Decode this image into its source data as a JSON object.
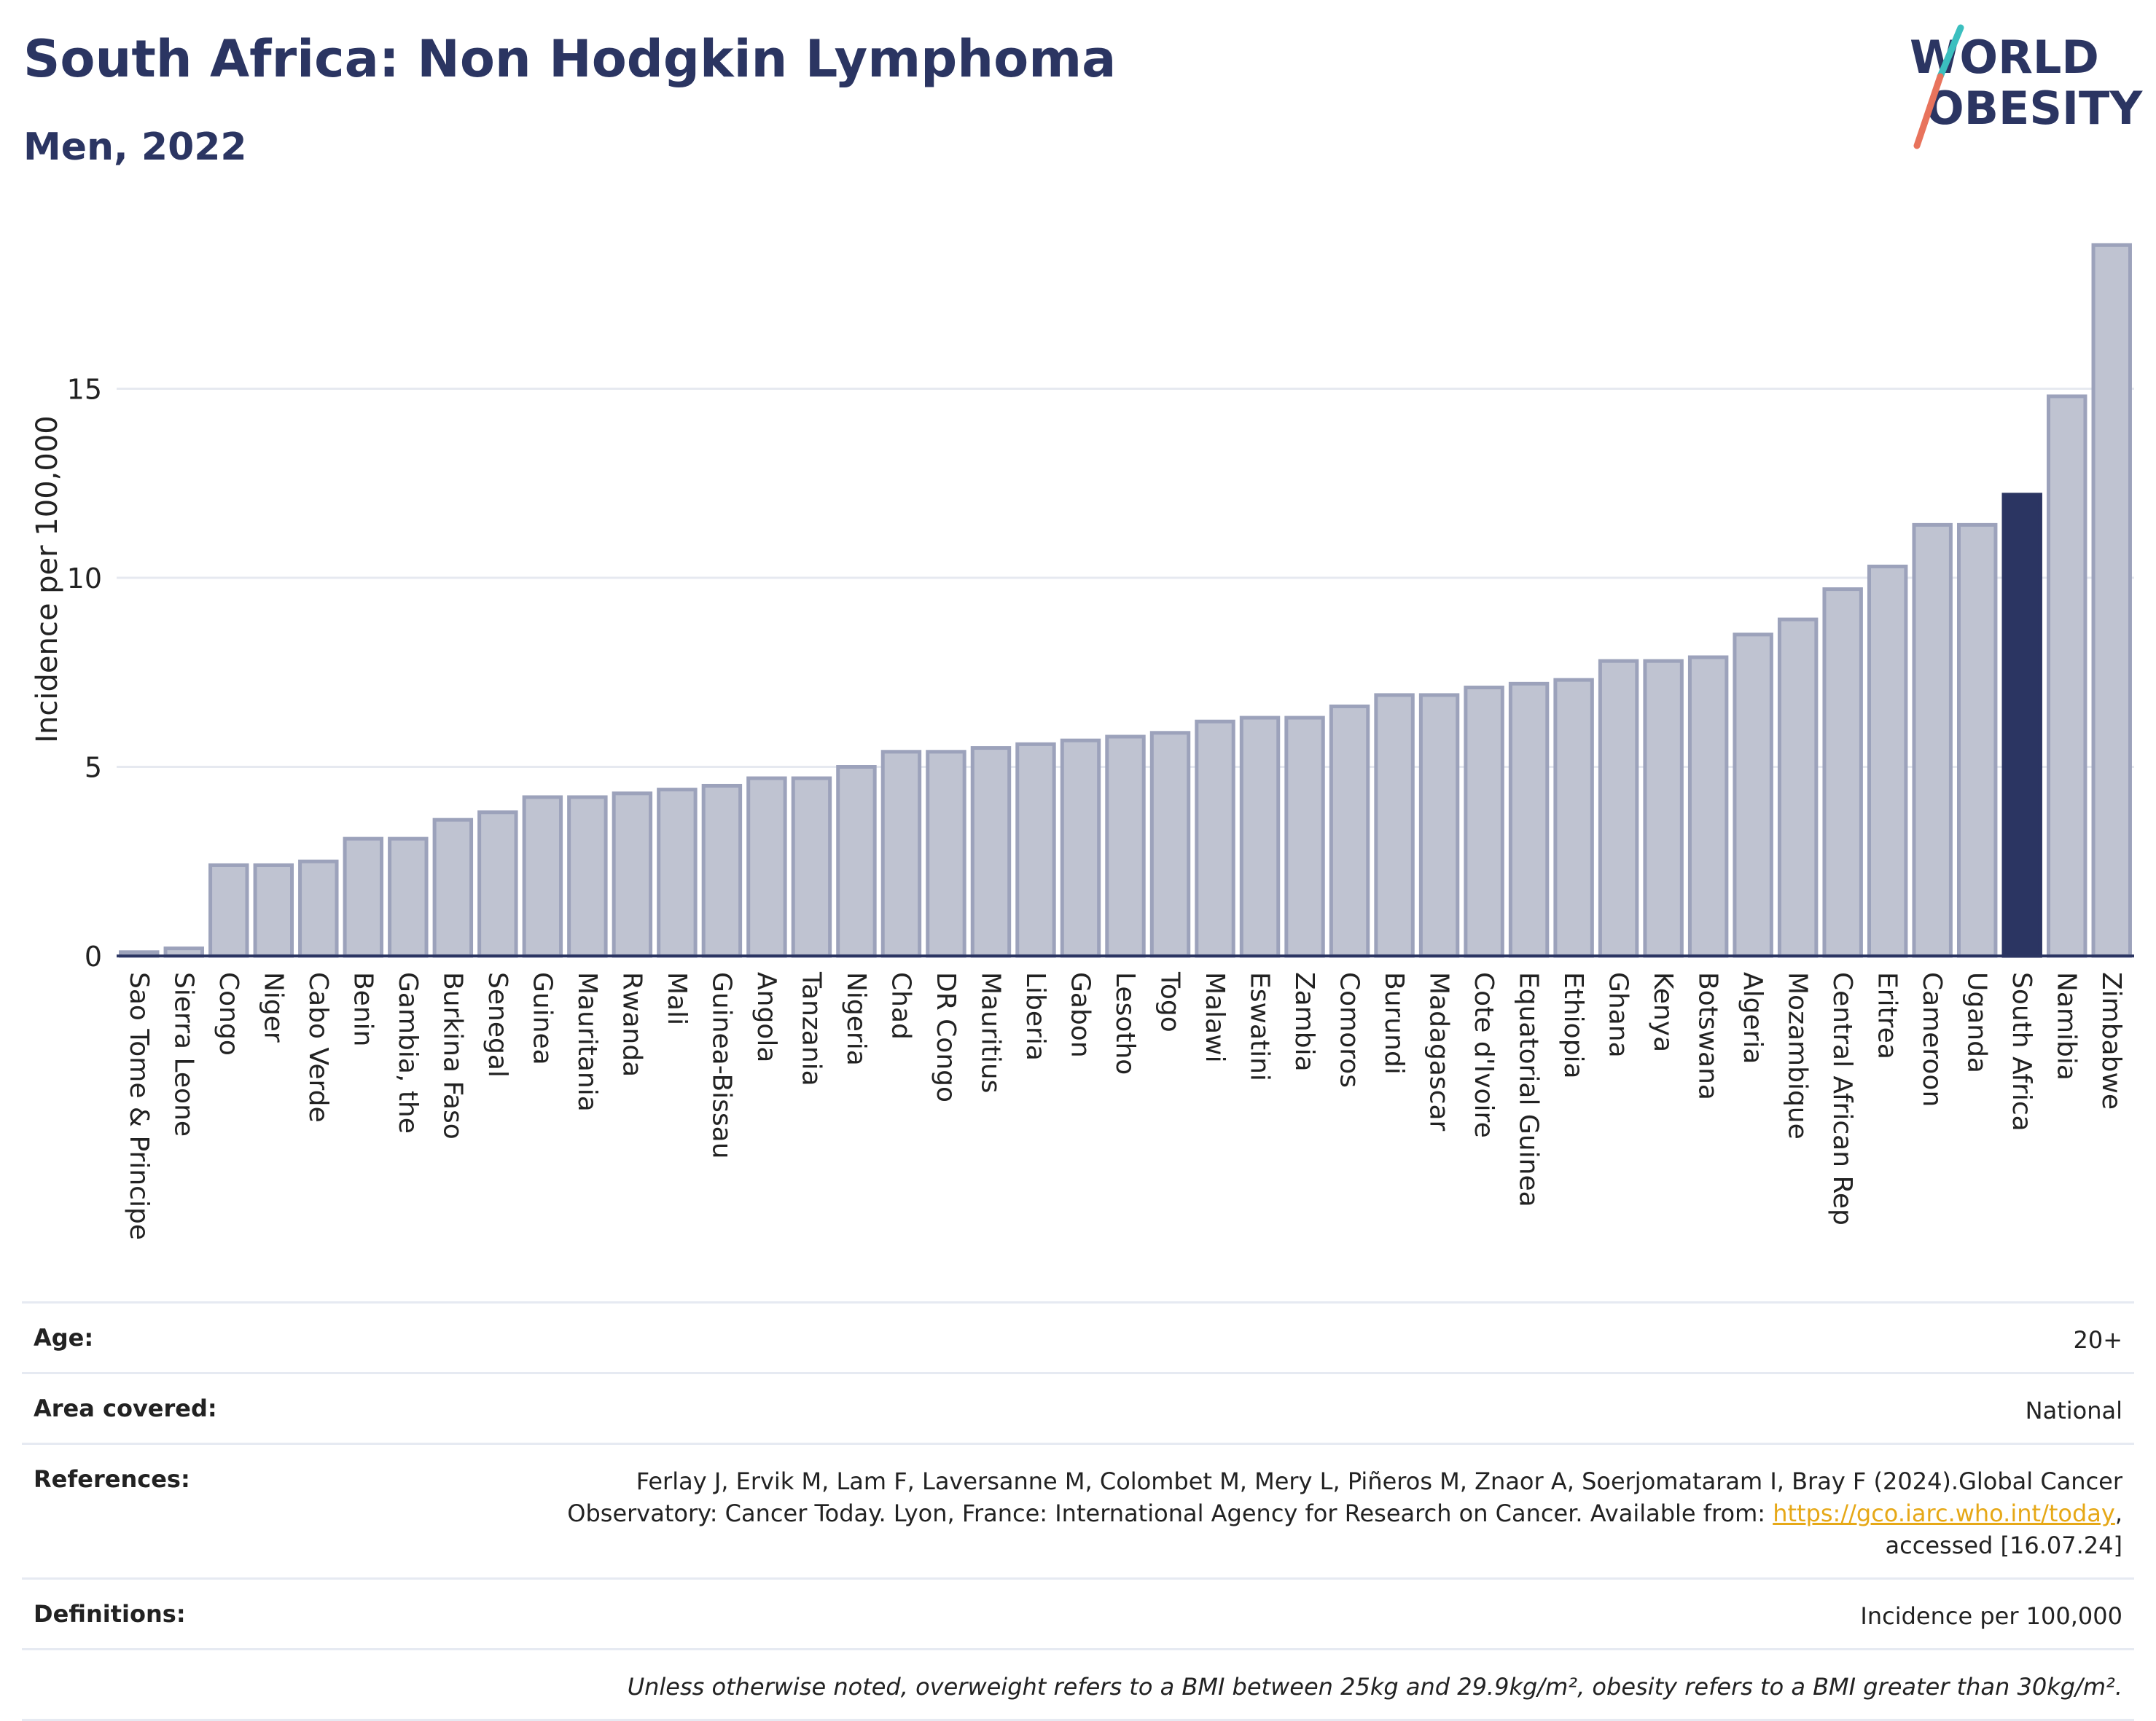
{
  "header": {
    "title": "South Africa: Non Hodgkin Lymphoma",
    "subtitle": "Men, 2022"
  },
  "logo": {
    "line1": "WORLD",
    "line2": "OBESITY",
    "colors": {
      "text": "#2b3562",
      "slash_top": "#3bbfbf",
      "slash_bottom": "#e8735c"
    }
  },
  "chart_data": {
    "type": "bar",
    "title": "South Africa: Non Hodgkin Lymphoma",
    "subtitle": "Men, 2022",
    "ylabel": "Incidence per 100,000",
    "xlabel": "",
    "ylim": [
      0,
      19.5
    ],
    "yticks": [
      0,
      5,
      10,
      15
    ],
    "grid": true,
    "highlight": "South Africa",
    "colors": {
      "bar": "#bfc3d1",
      "bar_border": "#9ca2bb",
      "highlight": "#2b3562",
      "grid": "#e6e9f0",
      "axis": "#2b3562"
    },
    "categories": [
      "Sao Tome & Principe",
      "Sierra Leone",
      "Congo",
      "Niger",
      "Cabo Verde",
      "Benin",
      "Gambia, the",
      "Burkina Faso",
      "Senegal",
      "Guinea",
      "Mauritania",
      "Rwanda",
      "Mali",
      "Guinea-Bissau",
      "Angola",
      "Tanzania",
      "Nigeria",
      "Chad",
      "DR Congo",
      "Mauritius",
      "Liberia",
      "Gabon",
      "Lesotho",
      "Togo",
      "Malawi",
      "Eswatini",
      "Zambia",
      "Comoros",
      "Burundi",
      "Madagascar",
      "Cote d'Ivoire",
      "Equatorial Guinea",
      "Ethiopia",
      "Ghana",
      "Kenya",
      "Botswana",
      "Algeria",
      "Mozambique",
      "Central African Rep",
      "Eritrea",
      "Cameroon",
      "Uganda",
      "South Africa",
      "Namibia",
      "Zimbabwe"
    ],
    "values": [
      0.1,
      0.2,
      2.4,
      2.4,
      2.5,
      3.1,
      3.1,
      3.6,
      3.8,
      4.2,
      4.2,
      4.3,
      4.4,
      4.5,
      4.7,
      4.7,
      5.0,
      5.4,
      5.4,
      5.5,
      5.6,
      5.7,
      5.8,
      5.9,
      6.2,
      6.3,
      6.3,
      6.6,
      6.9,
      6.9,
      7.1,
      7.2,
      7.3,
      7.8,
      7.8,
      7.9,
      8.5,
      8.9,
      9.7,
      10.3,
      11.4,
      11.4,
      12.2,
      14.8,
      18.8
    ]
  },
  "info": {
    "age_label": "Age:",
    "age_value": "20+",
    "area_label": "Area covered:",
    "area_value": "National",
    "references_label": "References:",
    "references_line1": "Ferlay J, Ervik M, Lam F, Laversanne M, Colombet M, Mery L, Piñeros M, Znaor A, Soerjomataram I, Bray F (2024).Global Cancer",
    "references_line2_pre": "Observatory: Cancer Today. Lyon, France: International Agency for Research on Cancer. Available from:",
    "references_link": "https://gco.iarc.who.int/today",
    "references_line2_post": ",",
    "references_line3": "accessed [16.07.24]",
    "definitions_label": "Definitions:",
    "definitions_value": "Incidence per 100,000",
    "note": "Unless otherwise noted, overweight refers to a BMI between 25kg and 29.9kg/m², obesity refers to a BMI greater than 30kg/m²."
  }
}
